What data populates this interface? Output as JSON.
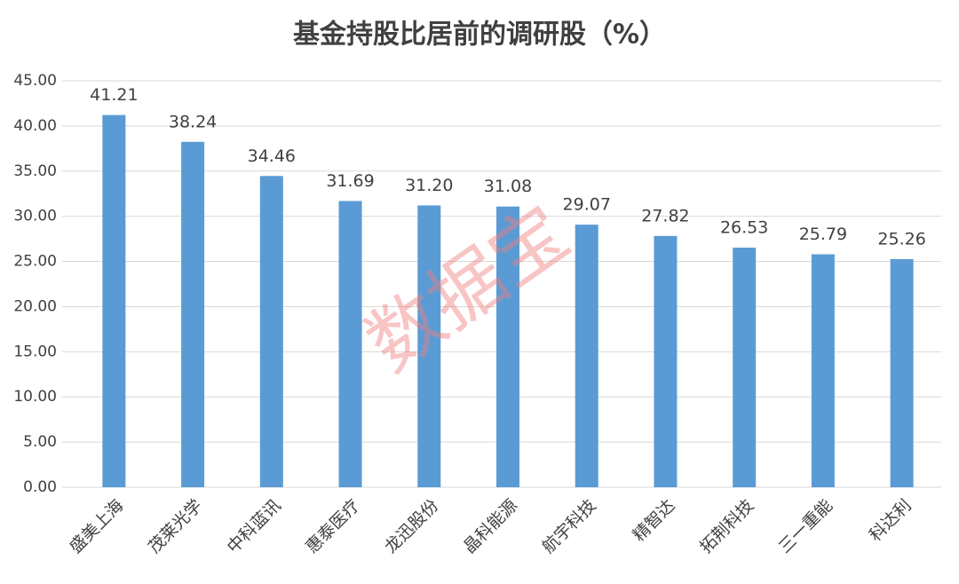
{
  "chart_data": {
    "type": "bar",
    "title": "基金持股比居前的调研股（%）",
    "watermark": "数据宝",
    "categories": [
      "盛美上海",
      "茂莱光学",
      "中科蓝讯",
      "惠泰医疗",
      "龙迅股份",
      "晶科能源",
      "航宇科技",
      "精智达",
      "拓荆科技",
      "三一重能",
      "科达利"
    ],
    "values": [
      41.21,
      38.24,
      34.46,
      31.69,
      31.2,
      31.08,
      29.07,
      27.82,
      26.53,
      25.79,
      25.26
    ],
    "value_labels": [
      "41.21",
      "38.24",
      "34.46",
      "31.69",
      "31.20",
      "31.08",
      "29.07",
      "27.82",
      "26.53",
      "25.79",
      "25.26"
    ],
    "color": "#5b9bd5",
    "ylim": [
      0,
      45
    ],
    "yticks": [
      {
        "value": 0,
        "label": "0.00"
      },
      {
        "value": 5,
        "label": "5.00"
      },
      {
        "value": 10,
        "label": "10.00"
      },
      {
        "value": 15,
        "label": "15.00"
      },
      {
        "value": 20,
        "label": "20.00"
      },
      {
        "value": 25,
        "label": "25.00"
      },
      {
        "value": 30,
        "label": "30.00"
      },
      {
        "value": 35,
        "label": "35.00"
      },
      {
        "value": 40,
        "label": "40.00"
      },
      {
        "value": 45,
        "label": "45.00"
      }
    ],
    "grid": true
  }
}
